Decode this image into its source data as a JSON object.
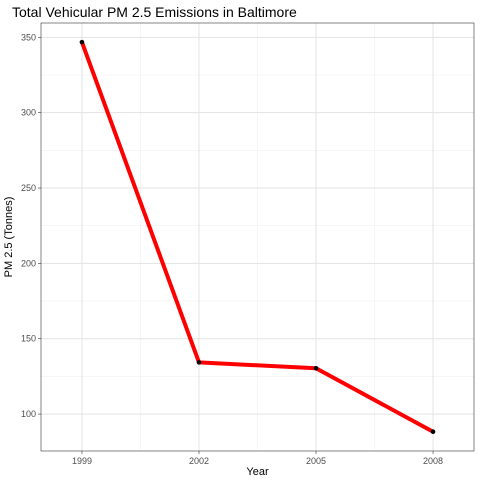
{
  "chart_data": {
    "type": "line",
    "title": "Total Vehicular PM 2.5 Emissions in Baltimore",
    "xlabel": "Year",
    "ylabel": "PM 2.5 (Tonnes)",
    "x": [
      1999,
      2002,
      2005,
      2008
    ],
    "x_tick_labels": [
      "1999",
      "2002",
      "2005",
      "2008"
    ],
    "y_ticks": [
      100,
      150,
      200,
      250,
      300,
      350
    ],
    "y_tick_labels": [
      "100",
      "150",
      "200",
      "250",
      "300",
      "350"
    ],
    "xlim": [
      1997.95,
      2009.05
    ],
    "ylim": [
      75.5,
      359.5
    ],
    "grid": true,
    "series": [
      {
        "values": [
          346.8,
          134.3,
          130.4,
          88.3
        ],
        "line_color": "#ff0000",
        "point_color": "#000000"
      }
    ]
  }
}
